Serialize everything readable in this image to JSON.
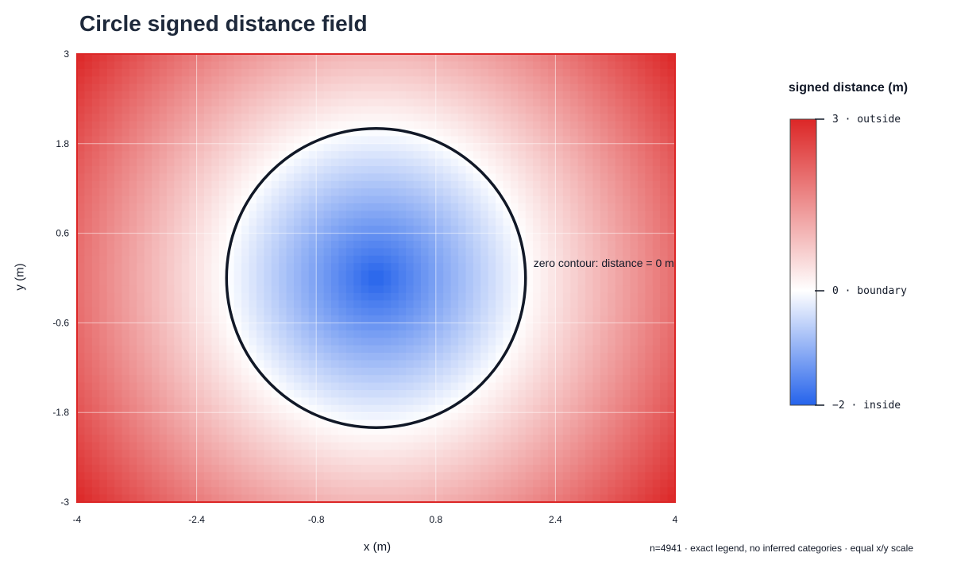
{
  "chart_data": {
    "type": "heatmap",
    "title": "Circle signed distance field",
    "xlabel": "x (m)",
    "ylabel": "y (m)",
    "xlim": [
      -4,
      4
    ],
    "ylim": [
      -3,
      3
    ],
    "x_ticks": [
      "-4",
      "-2.4",
      "-0.8",
      "0.8",
      "2.4",
      "4"
    ],
    "y_ticks": [
      "3",
      "1.8",
      "0.6",
      "-0.6",
      "-1.8",
      "-3"
    ],
    "x_tick_values": [
      -4,
      -2.4,
      -0.8,
      0.8,
      2.4,
      4
    ],
    "y_tick_values": [
      3,
      1.8,
      0.6,
      -0.6,
      -1.8,
      -3
    ],
    "grid": true,
    "circle": {
      "center_x": 0,
      "center_y": 0,
      "radius": 2
    },
    "field": "signed distance = sqrt(x^2 + y^2) - 2",
    "color_range": [
      -2,
      3
    ],
    "colors": {
      "low": "#2563eb",
      "mid": "#ffffff",
      "high": "#dc2626",
      "contour": "#111827"
    },
    "annotation": "zero contour: distance = 0 m",
    "colorbar": {
      "title": "signed distance (m)",
      "ticks": [
        {
          "value": 3,
          "label": "3 · outside"
        },
        {
          "value": 0,
          "label": "0 · boundary"
        },
        {
          "value": -2,
          "label": "−2 · inside"
        }
      ]
    },
    "footnote": "n=4941 · exact legend, no inferred categories · equal x/y scale"
  }
}
